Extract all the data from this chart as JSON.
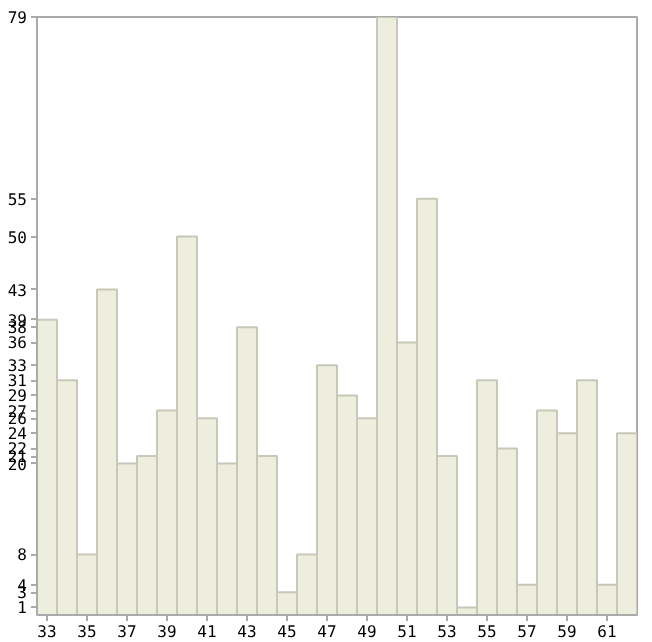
{
  "chart_data": {
    "type": "bar",
    "x": [
      33,
      34,
      35,
      36,
      37,
      38,
      39,
      40,
      41,
      42,
      43,
      44,
      45,
      46,
      47,
      48,
      49,
      50,
      51,
      52,
      53,
      54,
      55,
      56,
      57,
      58,
      59,
      60,
      61,
      62
    ],
    "values": [
      39,
      31,
      8,
      43,
      20,
      21,
      27,
      50,
      26,
      20,
      38,
      21,
      3,
      8,
      33,
      29,
      26,
      79,
      36,
      55,
      21,
      1,
      31,
      22,
      4,
      27,
      24,
      31,
      4,
      24
    ],
    "color": "#eeeedf",
    "xlim": [
      32.5,
      62.5
    ],
    "xticks": [
      33,
      35,
      37,
      39,
      41,
      43,
      45,
      47,
      49,
      51,
      53,
      55,
      57,
      59,
      61
    ],
    "ylim": [
      0,
      79
    ],
    "yticks": [
      1,
      3,
      4,
      8,
      20,
      21,
      22,
      24,
      26,
      27,
      29,
      31,
      33,
      36,
      38,
      39,
      43,
      50,
      55,
      79
    ],
    "grid": false
  }
}
